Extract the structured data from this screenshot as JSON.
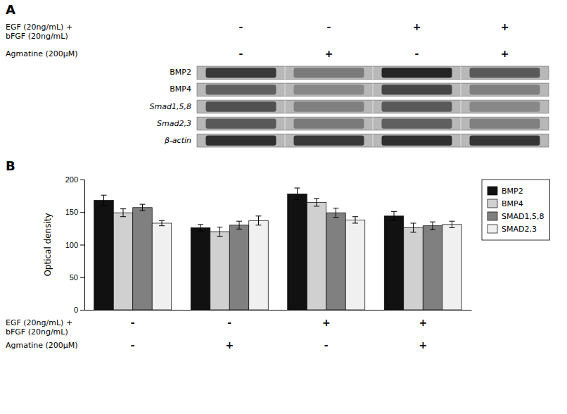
{
  "chart_data": [
    {
      "type": "heatmap",
      "title": "A",
      "y_categories": [
        "BMP2",
        "BMP4",
        "Smad1,5,8",
        "Smad2,3",
        "β-actin"
      ],
      "cells": [
        [
          0.82,
          0.6,
          0.88,
          0.72
        ],
        [
          0.7,
          0.55,
          0.78,
          0.58
        ],
        [
          0.75,
          0.58,
          0.72,
          0.55
        ],
        [
          0.72,
          0.6,
          0.7,
          0.58
        ],
        [
          0.85,
          0.82,
          0.85,
          0.83
        ]
      ],
      "annotations": [
        {
          "text": "EGF (20ng/mL) +\nbFGF (20ng/mL)",
          "signs": [
            "-",
            "-",
            "+",
            "+"
          ]
        },
        {
          "text": "Agmatine (200μM)",
          "signs": [
            "-",
            "+",
            "-",
            "+"
          ]
        }
      ]
    },
    {
      "type": "bar",
      "title": "B",
      "categories": [
        null,
        null,
        null,
        null
      ],
      "series": [
        {
          "name": "BMP2",
          "color": "#111111",
          "values": [
            168,
            126,
            178,
            144
          ],
          "errors": [
            8,
            5,
            9,
            7
          ]
        },
        {
          "name": "BMP4",
          "color": "#d0d0d0",
          "values": [
            149,
            120,
            165,
            126
          ],
          "errors": [
            6,
            7,
            6,
            7
          ]
        },
        {
          "name": "SMAD1,5,8",
          "color": "#808080",
          "values": [
            157,
            130,
            149,
            129
          ],
          "errors": [
            5,
            6,
            7,
            6
          ]
        },
        {
          "name": "SMAD2,3",
          "color": "#f0f0f0",
          "values": [
            133,
            137,
            138,
            131
          ],
          "errors": [
            4,
            7,
            5,
            5
          ]
        }
      ],
      "ylabel": "Optical density",
      "ylim": [
        0,
        200
      ],
      "yticks": [
        0,
        50,
        100,
        150,
        200
      ],
      "legend": "upper right",
      "tick_labels": "y",
      "grid": false,
      "annotations": [
        {
          "text": "EGF (20ng/mL) +\nbFGF (20ng/mL)",
          "signs": [
            "-",
            "-",
            "+",
            "+"
          ]
        },
        {
          "text": "Agmatine (200μM)",
          "signs": [
            "-",
            "+",
            "-",
            "+"
          ]
        }
      ]
    }
  ]
}
